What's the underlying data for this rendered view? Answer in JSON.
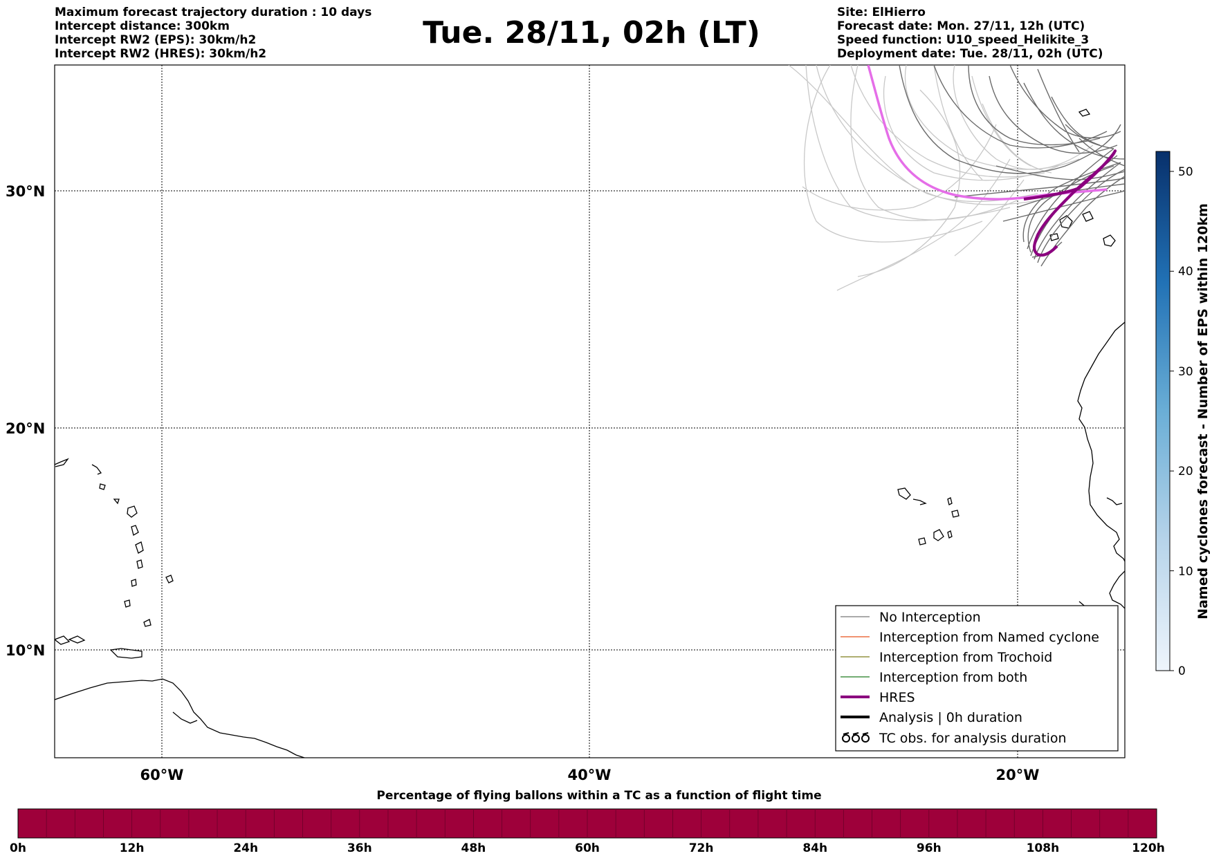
{
  "header": {
    "left_lines": [
      "Maximum forecast trajectory duration : 10 days",
      "Intercept distance: 300km",
      "Intercept RW2 (EPS):  30km/h2",
      "Intercept RW2 (HRES): 30km/h2"
    ],
    "title": "Tue. 28/11, 02h (LT)",
    "right_lines": [
      "Site: ElHierro",
      "Forecast date: Mon. 27/11, 12h (UTC)",
      "Speed function: U10_speed_Helikite_3",
      "Deployment date: Tue. 28/11, 02h (UTC)"
    ]
  },
  "map": {
    "lat_labels": [
      "30°N",
      "20°N",
      "10°N"
    ],
    "lon_labels": [
      "60°W",
      "40°W",
      "20°W"
    ]
  },
  "legend": {
    "entries": [
      {
        "label": "No Interception",
        "color": "#777777",
        "style": "thin"
      },
      {
        "label": "Interception from Named cyclone",
        "color": "#e8501c",
        "style": "thin"
      },
      {
        "label": "Interception from Trochoid",
        "color": "#7d7d1a",
        "style": "thin"
      },
      {
        "label": "Interception from both",
        "color": "#1f7a1f",
        "style": "thin"
      },
      {
        "label": "HRES",
        "color": "#8b007f",
        "style": "thick"
      },
      {
        "label": "Analysis | 0h duration",
        "color": "#000000",
        "style": "thick"
      },
      {
        "label": "TC obs. for analysis duration",
        "color": "#000000",
        "style": "symbol"
      }
    ]
  },
  "colorbar_right": {
    "label": "Named cyclones forecast - Number of EPS within 120km",
    "ticks": [
      "0",
      "10",
      "20",
      "30",
      "40",
      "50"
    ],
    "range": [
      0,
      52
    ]
  },
  "colorbar_bottom": {
    "title": "Percentage of flying ballons within a TC as a function of flight time",
    "ticks": [
      "0h",
      "12h",
      "24h",
      "36h",
      "48h",
      "60h",
      "72h",
      "84h",
      "96h",
      "108h",
      "120h"
    ],
    "color": "#9e003a"
  },
  "colors": {
    "hres": "#8b007f",
    "analysis_pink": "#e56ee8",
    "eps_dark": "#666666",
    "eps_light": "#c8c8c8"
  }
}
